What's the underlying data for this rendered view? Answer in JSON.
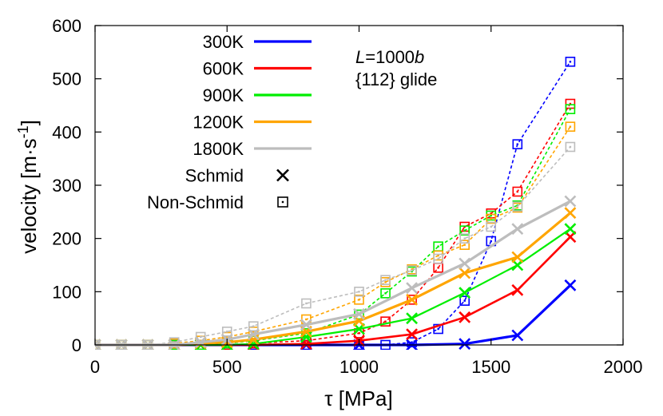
{
  "chart_data": {
    "type": "line",
    "xlabel": "τ [MPa]",
    "ylabel": "velocity [m·s⁻¹]",
    "ylabel_parts": {
      "main": "velocity [m·s",
      "sup": "-1",
      "close": "]"
    },
    "xlim": [
      0,
      2000
    ],
    "ylim": [
      0,
      600
    ],
    "xticks": [
      0,
      500,
      1000,
      1500,
      2000
    ],
    "yticks": [
      0,
      100,
      200,
      300,
      400,
      500,
      600
    ],
    "grid": false,
    "legend_position": "top-left",
    "annotation": {
      "line1_italic1": "L",
      "line1_rest": "=1000",
      "line1_italic2": "b",
      "line2": "{112} glide"
    },
    "legend_markers": [
      {
        "name": "Schmid",
        "marker": "x"
      },
      {
        "name": "Non-Schmid",
        "marker": "square-dot"
      }
    ],
    "series": [
      {
        "name": "300K",
        "color": "#0000ff",
        "schmid": {
          "x": [
            0,
            100,
            200,
            300,
            400,
            500,
            600,
            800,
            1000,
            1200,
            1400,
            1600,
            1800
          ],
          "y": [
            0,
            0,
            0,
            0,
            0,
            0,
            0,
            0,
            0,
            0,
            2,
            18,
            112
          ]
        },
        "non_schmid": {
          "x": [
            0,
            100,
            200,
            300,
            400,
            500,
            600,
            800,
            1000,
            1100,
            1200,
            1300,
            1400,
            1500,
            1600,
            1800
          ],
          "y": [
            0,
            0,
            0,
            0,
            0,
            0,
            0,
            0,
            0,
            0,
            5,
            30,
            83,
            195,
            377,
            532
          ]
        }
      },
      {
        "name": "600K",
        "color": "#ff0000",
        "schmid": {
          "x": [
            0,
            100,
            200,
            300,
            400,
            500,
            600,
            800,
            1000,
            1200,
            1400,
            1600,
            1800
          ],
          "y": [
            0,
            0,
            0,
            0,
            0,
            0,
            0,
            2,
            8,
            20,
            52,
            103,
            203
          ]
        },
        "non_schmid": {
          "x": [
            0,
            100,
            200,
            300,
            400,
            500,
            600,
            800,
            1000,
            1100,
            1200,
            1300,
            1400,
            1500,
            1600,
            1800
          ],
          "y": [
            0,
            0,
            0,
            0,
            0,
            0,
            3,
            8,
            22,
            44,
            85,
            145,
            222,
            247,
            288,
            453
          ]
        }
      },
      {
        "name": "900K",
        "color": "#00ee00",
        "schmid": {
          "x": [
            0,
            100,
            200,
            300,
            400,
            500,
            600,
            800,
            1000,
            1200,
            1400,
            1600,
            1800
          ],
          "y": [
            0,
            0,
            0,
            0,
            0,
            0,
            2,
            15,
            30,
            50,
            98,
            150,
            218
          ]
        },
        "non_schmid": {
          "x": [
            0,
            100,
            200,
            300,
            400,
            500,
            600,
            800,
            1000,
            1100,
            1200,
            1300,
            1400,
            1500,
            1600,
            1800
          ],
          "y": [
            0,
            0,
            0,
            0,
            0,
            3,
            8,
            22,
            57,
            97,
            138,
            185,
            215,
            243,
            262,
            443
          ]
        }
      },
      {
        "name": "1200K",
        "color": "#ffa500",
        "schmid": {
          "x": [
            0,
            100,
            200,
            300,
            400,
            500,
            600,
            800,
            1000,
            1200,
            1400,
            1600,
            1800
          ],
          "y": [
            0,
            0,
            0,
            0,
            3,
            5,
            10,
            25,
            45,
            85,
            135,
            165,
            248
          ]
        },
        "non_schmid": {
          "x": [
            0,
            100,
            200,
            300,
            400,
            500,
            600,
            800,
            1000,
            1100,
            1200,
            1300,
            1400,
            1500,
            1600,
            1800
          ],
          "y": [
            0,
            0,
            0,
            3,
            8,
            15,
            25,
            48,
            85,
            118,
            142,
            168,
            188,
            237,
            258,
            410
          ]
        }
      },
      {
        "name": "1800K",
        "color": "#bdbdbd",
        "schmid": {
          "x": [
            0,
            100,
            200,
            300,
            400,
            500,
            600,
            800,
            1000,
            1200,
            1400,
            1600,
            1800
          ],
          "y": [
            0,
            0,
            0,
            0,
            5,
            10,
            20,
            38,
            58,
            107,
            153,
            218,
            270
          ]
        },
        "non_schmid": {
          "x": [
            0,
            100,
            200,
            300,
            400,
            500,
            600,
            800,
            1000,
            1100,
            1200,
            1300,
            1400,
            1500,
            1600,
            1800
          ],
          "y": [
            0,
            0,
            0,
            5,
            15,
            25,
            35,
            78,
            100,
            122,
            140,
            162,
            200,
            222,
            260,
            372
          ]
        }
      }
    ]
  }
}
